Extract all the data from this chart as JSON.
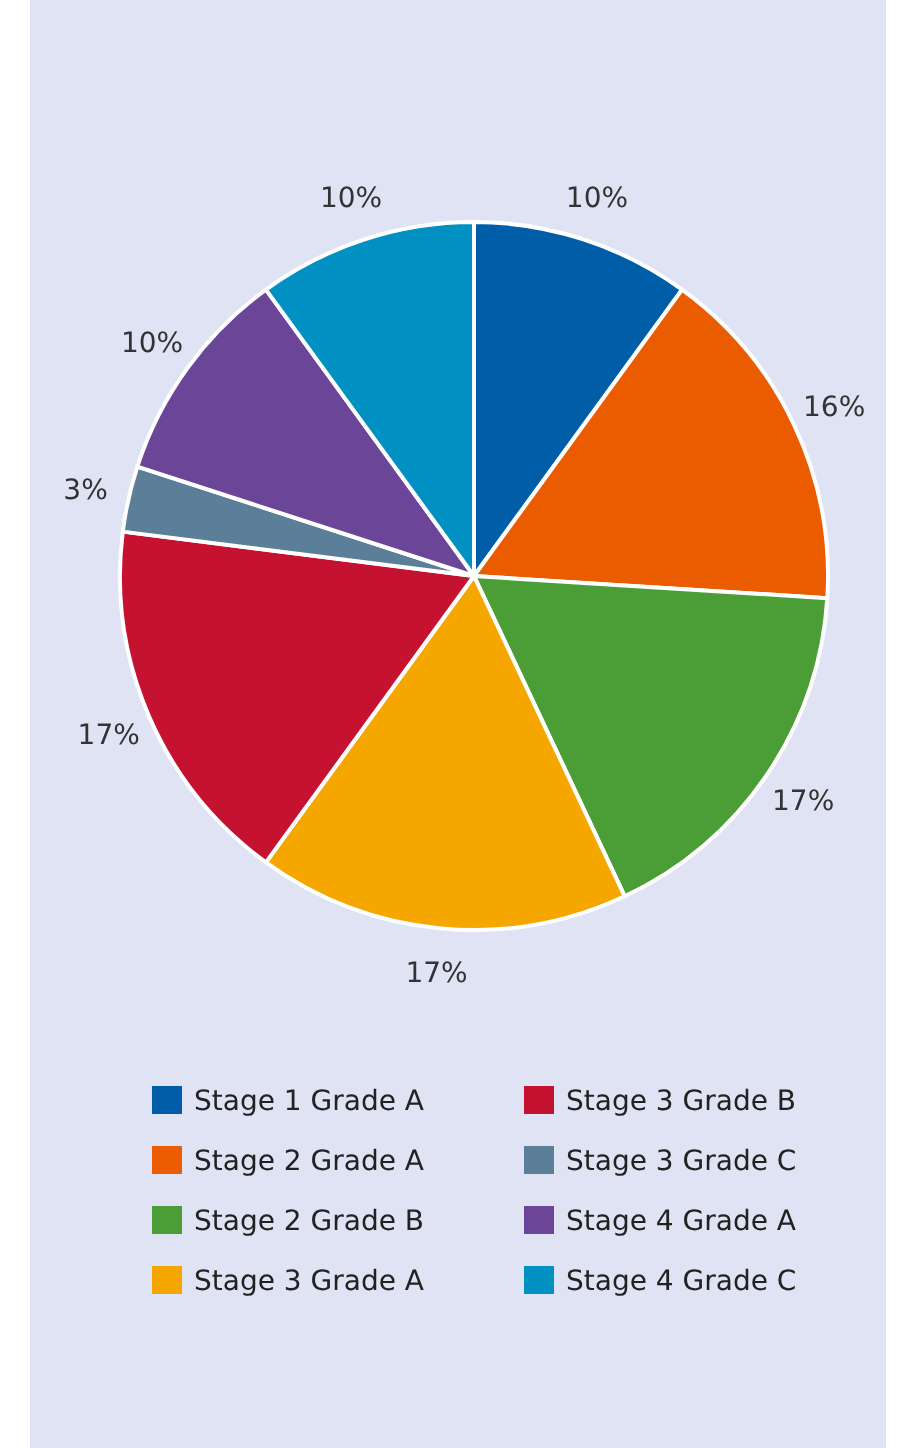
{
  "chart_data": {
    "type": "pie",
    "categories": [
      "Stage 1 Grade A",
      "Stage 2 Grade A",
      "Stage 2 Grade B",
      "Stage 3 Grade A",
      "Stage 3 Grade B",
      "Stage 3 Grade C",
      "Stage 4 Grade A",
      "Stage 4 Grade C"
    ],
    "values": [
      10,
      16,
      17,
      17,
      17,
      3,
      10,
      10
    ],
    "colors": [
      "#005ea8",
      "#eb5b00",
      "#4b9e36",
      "#f5a700",
      "#c41230",
      "#5b7f98",
      "#6b4598",
      "#0090c1"
    ],
    "value_labels": [
      "10%",
      "16%",
      "17%",
      "17%",
      "17%",
      "3%",
      "10%",
      "10%"
    ],
    "legend": "bottom"
  }
}
